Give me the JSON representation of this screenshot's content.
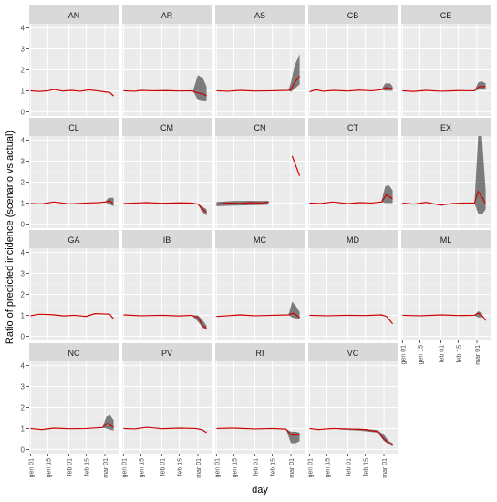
{
  "chart_data": {
    "type": "line",
    "layout": "facet_wrap",
    "xlabel": "day",
    "ylabel": "Ratio of predicted incidence (scenario vs actual)",
    "x_tick_labels": [
      "gen 01",
      "gen 15",
      "feb 01",
      "feb 15",
      "mar 01"
    ],
    "x_ticks": [
      "2020-01-01",
      "2020-01-15",
      "2020-02-01",
      "2020-02-15",
      "2020-03-01"
    ],
    "x_range": [
      "2019-12-31",
      "2020-03-12"
    ],
    "y_ticks": [
      0,
      1,
      2,
      3,
      4
    ],
    "ylim": [
      -0.2,
      4.2
    ],
    "grid": true,
    "line_color": "#cc0000",
    "band_color": "#555555",
    "panel_background": "#ebebeb",
    "strip_background": "#d9d9d9",
    "panels": [
      {
        "label": "AN",
        "line": [
          [
            "2020-01-01",
            1.0
          ],
          [
            "2020-01-08",
            0.97
          ],
          [
            "2020-01-15",
            1.0
          ],
          [
            "2020-01-20",
            1.06
          ],
          [
            "2020-01-27",
            0.99
          ],
          [
            "2020-02-03",
            1.02
          ],
          [
            "2020-02-10",
            0.98
          ],
          [
            "2020-02-17",
            1.04
          ],
          [
            "2020-02-24",
            1.0
          ],
          [
            "2020-03-01",
            0.95
          ],
          [
            "2020-03-05",
            0.92
          ],
          [
            "2020-03-08",
            0.75
          ]
        ],
        "band": null
      },
      {
        "label": "AR",
        "line": [
          [
            "2020-01-01",
            1.0
          ],
          [
            "2020-01-10",
            0.98
          ],
          [
            "2020-01-15",
            1.02
          ],
          [
            "2020-01-25",
            1.0
          ],
          [
            "2020-02-05",
            1.01
          ],
          [
            "2020-02-15",
            0.99
          ],
          [
            "2020-02-25",
            1.0
          ],
          [
            "2020-03-01",
            0.9
          ],
          [
            "2020-03-05",
            0.85
          ],
          [
            "2020-03-08",
            0.75
          ]
        ],
        "band": [
          [
            "2020-02-26",
            1.0,
            1.0
          ],
          [
            "2020-03-01",
            0.55,
            1.75
          ],
          [
            "2020-03-05",
            0.5,
            1.6
          ],
          [
            "2020-03-08",
            0.5,
            1.2
          ]
        ]
      },
      {
        "label": "AS",
        "line": [
          [
            "2020-01-01",
            1.0
          ],
          [
            "2020-01-10",
            0.98
          ],
          [
            "2020-01-20",
            1.02
          ],
          [
            "2020-02-01",
            0.99
          ],
          [
            "2020-02-15",
            1.0
          ],
          [
            "2020-02-28",
            1.02
          ],
          [
            "2020-03-01",
            1.05
          ],
          [
            "2020-03-04",
            1.4
          ],
          [
            "2020-03-08",
            1.7
          ]
        ],
        "band": [
          [
            "2020-02-28",
            1.02,
            1.02
          ],
          [
            "2020-03-01",
            0.95,
            1.4
          ],
          [
            "2020-03-04",
            1.1,
            2.2
          ],
          [
            "2020-03-08",
            1.3,
            2.75
          ]
        ]
      },
      {
        "label": "CB",
        "line": [
          [
            "2020-01-01",
            0.95
          ],
          [
            "2020-01-06",
            1.05
          ],
          [
            "2020-01-12",
            0.98
          ],
          [
            "2020-01-20",
            1.02
          ],
          [
            "2020-02-01",
            0.99
          ],
          [
            "2020-02-10",
            1.03
          ],
          [
            "2020-02-20",
            1.0
          ],
          [
            "2020-02-28",
            1.05
          ],
          [
            "2020-03-03",
            1.15
          ],
          [
            "2020-03-08",
            1.1
          ]
        ],
        "band": [
          [
            "2020-02-28",
            1.05,
            1.05
          ],
          [
            "2020-03-02",
            1.0,
            1.35
          ],
          [
            "2020-03-06",
            1.0,
            1.35
          ],
          [
            "2020-03-08",
            1.0,
            1.2
          ]
        ]
      },
      {
        "label": "CE",
        "line": [
          [
            "2020-01-01",
            1.0
          ],
          [
            "2020-01-10",
            0.97
          ],
          [
            "2020-01-20",
            1.02
          ],
          [
            "2020-02-01",
            0.98
          ],
          [
            "2020-02-15",
            1.01
          ],
          [
            "2020-02-28",
            1.0
          ],
          [
            "2020-03-03",
            1.2
          ],
          [
            "2020-03-08",
            1.2
          ]
        ],
        "band": [
          [
            "2020-02-28",
            1.0,
            1.0
          ],
          [
            "2020-03-02",
            1.05,
            1.4
          ],
          [
            "2020-03-05",
            1.05,
            1.45
          ],
          [
            "2020-03-08",
            1.05,
            1.35
          ]
        ]
      },
      {
        "label": "CL",
        "line": [
          [
            "2020-01-01",
            0.98
          ],
          [
            "2020-01-10",
            0.96
          ],
          [
            "2020-01-20",
            1.05
          ],
          [
            "2020-02-01",
            0.96
          ],
          [
            "2020-02-15",
            1.0
          ],
          [
            "2020-02-25",
            1.02
          ],
          [
            "2020-03-01",
            1.05
          ],
          [
            "2020-03-05",
            1.1
          ],
          [
            "2020-03-08",
            0.95
          ]
        ],
        "band": [
          [
            "2020-03-01",
            1.05,
            1.05
          ],
          [
            "2020-03-04",
            0.95,
            1.25
          ],
          [
            "2020-03-08",
            0.85,
            1.25
          ]
        ]
      },
      {
        "label": "CM",
        "line": [
          [
            "2020-01-01",
            0.98
          ],
          [
            "2020-01-10",
            1.0
          ],
          [
            "2020-01-20",
            1.02
          ],
          [
            "2020-02-01",
            0.99
          ],
          [
            "2020-02-15",
            1.01
          ],
          [
            "2020-02-25",
            1.0
          ],
          [
            "2020-03-01",
            0.95
          ],
          [
            "2020-03-05",
            0.7
          ],
          [
            "2020-03-08",
            0.55
          ]
        ],
        "band": [
          [
            "2020-03-01",
            0.95,
            0.95
          ],
          [
            "2020-03-04",
            0.6,
            0.85
          ],
          [
            "2020-03-08",
            0.4,
            0.7
          ]
        ]
      },
      {
        "label": "CN",
        "line": [
          [
            "2020-01-01",
            0.95
          ],
          [
            "2020-01-10",
            1.0
          ],
          [
            "2020-01-20",
            0.98
          ],
          [
            "2020-01-28",
            1.02
          ],
          [
            "2020-02-08",
            1.0
          ],
          [
            "2020-02-12",
            1.05
          ]
        ],
        "line2": [
          [
            "2020-03-02",
            3.25
          ],
          [
            "2020-03-08",
            2.3
          ]
        ],
        "band": [
          [
            "2020-01-01",
            0.85,
            1.05
          ],
          [
            "2020-01-15",
            0.88,
            1.1
          ],
          [
            "2020-02-01",
            0.9,
            1.1
          ],
          [
            "2020-02-12",
            0.92,
            1.1
          ]
        ]
      },
      {
        "label": "CT",
        "line": [
          [
            "2020-01-01",
            1.0
          ],
          [
            "2020-01-10",
            0.98
          ],
          [
            "2020-01-20",
            1.05
          ],
          [
            "2020-02-01",
            0.97
          ],
          [
            "2020-02-10",
            1.02
          ],
          [
            "2020-02-20",
            1.0
          ],
          [
            "2020-02-28",
            1.05
          ],
          [
            "2020-03-03",
            1.4
          ],
          [
            "2020-03-08",
            1.2
          ]
        ],
        "band": [
          [
            "2020-02-28",
            1.05,
            1.05
          ],
          [
            "2020-03-02",
            1.0,
            1.8
          ],
          [
            "2020-03-05",
            1.0,
            1.85
          ],
          [
            "2020-03-08",
            1.0,
            1.6
          ]
        ]
      },
      {
        "label": "EX",
        "line": [
          [
            "2020-01-01",
            1.0
          ],
          [
            "2020-01-10",
            0.95
          ],
          [
            "2020-01-20",
            1.03
          ],
          [
            "2020-02-01",
            0.9
          ],
          [
            "2020-02-10",
            0.98
          ],
          [
            "2020-02-20",
            1.0
          ],
          [
            "2020-02-28",
            1.0
          ],
          [
            "2020-03-02",
            1.55
          ],
          [
            "2020-03-06",
            1.2
          ],
          [
            "2020-03-08",
            0.95
          ]
        ],
        "band": [
          [
            "2020-02-28",
            1.0,
            1.0
          ],
          [
            "2020-03-02",
            0.5,
            4.2
          ],
          [
            "2020-03-05",
            0.45,
            4.2
          ],
          [
            "2020-03-08",
            0.7,
            1.6
          ]
        ]
      },
      {
        "label": "GA",
        "line": [
          [
            "2020-01-01",
            0.98
          ],
          [
            "2020-01-08",
            1.05
          ],
          [
            "2020-01-18",
            1.03
          ],
          [
            "2020-01-28",
            0.97
          ],
          [
            "2020-02-05",
            1.0
          ],
          [
            "2020-02-15",
            0.95
          ],
          [
            "2020-02-22",
            1.08
          ],
          [
            "2020-03-01",
            1.06
          ],
          [
            "2020-03-05",
            1.05
          ],
          [
            "2020-03-08",
            0.82
          ]
        ],
        "band": null
      },
      {
        "label": "IB",
        "line": [
          [
            "2020-01-01",
            1.02
          ],
          [
            "2020-01-15",
            0.98
          ],
          [
            "2020-02-01",
            1.0
          ],
          [
            "2020-02-15",
            0.97
          ],
          [
            "2020-02-25",
            1.0
          ],
          [
            "2020-03-01",
            0.9
          ],
          [
            "2020-03-05",
            0.5
          ],
          [
            "2020-03-08",
            0.38
          ]
        ],
        "band": [
          [
            "2020-02-25",
            1.0,
            1.0
          ],
          [
            "2020-03-01",
            0.7,
            1.0
          ],
          [
            "2020-03-05",
            0.4,
            0.75
          ],
          [
            "2020-03-08",
            0.3,
            0.5
          ]
        ]
      },
      {
        "label": "MC",
        "line": [
          [
            "2020-01-01",
            0.95
          ],
          [
            "2020-01-10",
            0.98
          ],
          [
            "2020-01-20",
            1.02
          ],
          [
            "2020-02-01",
            0.98
          ],
          [
            "2020-02-15",
            1.0
          ],
          [
            "2020-02-28",
            1.02
          ],
          [
            "2020-03-03",
            1.1
          ],
          [
            "2020-03-08",
            0.9
          ]
        ],
        "band": [
          [
            "2020-02-28",
            1.02,
            1.02
          ],
          [
            "2020-03-02",
            0.9,
            1.65
          ],
          [
            "2020-03-05",
            0.85,
            1.45
          ],
          [
            "2020-03-08",
            0.8,
            1.15
          ]
        ]
      },
      {
        "label": "MD",
        "line": [
          [
            "2020-01-01",
            1.0
          ],
          [
            "2020-01-15",
            0.98
          ],
          [
            "2020-02-01",
            1.0
          ],
          [
            "2020-02-15",
            0.99
          ],
          [
            "2020-02-28",
            1.02
          ],
          [
            "2020-03-03",
            0.95
          ],
          [
            "2020-03-08",
            0.6
          ]
        ],
        "band": null
      },
      {
        "label": "ML",
        "line": [
          [
            "2020-01-01",
            1.0
          ],
          [
            "2020-01-15",
            0.98
          ],
          [
            "2020-02-01",
            1.02
          ],
          [
            "2020-02-15",
            0.99
          ],
          [
            "2020-02-28",
            1.0
          ],
          [
            "2020-03-02",
            1.1
          ],
          [
            "2020-03-05",
            1.0
          ],
          [
            "2020-03-08",
            0.75
          ]
        ],
        "band": [
          [
            "2020-02-28",
            1.0,
            1.0
          ],
          [
            "2020-03-02",
            0.9,
            1.2
          ],
          [
            "2020-03-05",
            0.9,
            1.1
          ]
        ]
      },
      {
        "label": "NC",
        "line": [
          [
            "2020-01-01",
            1.0
          ],
          [
            "2020-01-10",
            0.95
          ],
          [
            "2020-01-20",
            1.02
          ],
          [
            "2020-02-01",
            0.99
          ],
          [
            "2020-02-15",
            1.0
          ],
          [
            "2020-02-28",
            1.05
          ],
          [
            "2020-03-03",
            1.25
          ],
          [
            "2020-03-08",
            1.05
          ]
        ],
        "band": [
          [
            "2020-02-28",
            1.05,
            1.05
          ],
          [
            "2020-03-02",
            1.0,
            1.55
          ],
          [
            "2020-03-05",
            0.95,
            1.65
          ],
          [
            "2020-03-08",
            0.9,
            1.4
          ]
        ]
      },
      {
        "label": "PV",
        "line": [
          [
            "2020-01-01",
            1.0
          ],
          [
            "2020-01-10",
            0.98
          ],
          [
            "2020-01-20",
            1.06
          ],
          [
            "2020-02-01",
            0.99
          ],
          [
            "2020-02-15",
            1.02
          ],
          [
            "2020-02-28",
            1.0
          ],
          [
            "2020-03-04",
            0.95
          ],
          [
            "2020-03-08",
            0.8
          ]
        ],
        "band": null
      },
      {
        "label": "RI",
        "line": [
          [
            "2020-01-01",
            1.0
          ],
          [
            "2020-01-15",
            1.02
          ],
          [
            "2020-02-01",
            0.98
          ],
          [
            "2020-02-15",
            1.0
          ],
          [
            "2020-02-26",
            0.97
          ],
          [
            "2020-03-01",
            0.7
          ],
          [
            "2020-03-04",
            0.68
          ],
          [
            "2020-03-08",
            0.72
          ]
        ],
        "band": [
          [
            "2020-02-26",
            0.97,
            0.97
          ],
          [
            "2020-03-01",
            0.3,
            0.85
          ],
          [
            "2020-03-05",
            0.3,
            0.85
          ],
          [
            "2020-03-08",
            0.4,
            0.8
          ]
        ]
      },
      {
        "label": "VC",
        "line": [
          [
            "2020-01-01",
            1.0
          ],
          [
            "2020-01-08",
            0.95
          ],
          [
            "2020-01-20",
            1.0
          ],
          [
            "2020-02-01",
            0.98
          ],
          [
            "2020-02-15",
            0.95
          ],
          [
            "2020-02-25",
            0.85
          ],
          [
            "2020-03-01",
            0.5
          ],
          [
            "2020-03-05",
            0.3
          ],
          [
            "2020-03-08",
            0.2
          ]
        ],
        "band": [
          [
            "2020-01-25",
            0.95,
            1.0
          ],
          [
            "2020-02-10",
            0.9,
            1.0
          ],
          [
            "2020-02-25",
            0.8,
            0.92
          ],
          [
            "2020-03-01",
            0.4,
            0.7
          ],
          [
            "2020-03-05",
            0.25,
            0.4
          ],
          [
            "2020-03-08",
            0.15,
            0.3
          ]
        ]
      }
    ]
  }
}
